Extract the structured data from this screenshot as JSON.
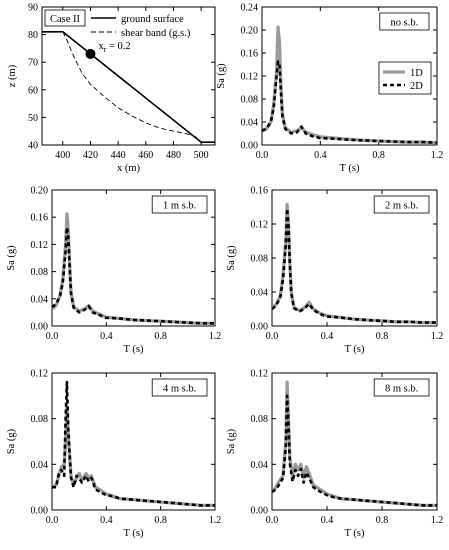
{
  "chart_data": [
    {
      "id": "geometry",
      "type": "line",
      "xlabel": "x (m)",
      "ylabel": "z (m)",
      "xlim": [
        385,
        510
      ],
      "ylim": [
        40,
        90
      ],
      "xticks": [
        400,
        420,
        440,
        460,
        480,
        500
      ],
      "yticks": [
        40,
        50,
        60,
        70,
        80,
        90
      ],
      "xtick_labels": [
        "400",
        "420",
        "440",
        "460",
        "480",
        "500"
      ],
      "ytick_labels": [
        "40",
        "50",
        "60",
        "70",
        "80",
        "90"
      ],
      "label_box": "Case II",
      "legend_position": "top-right",
      "series": [
        {
          "name": "ground surface",
          "style": "solid",
          "x": [
            385,
            400,
            500,
            510
          ],
          "y": [
            81,
            81,
            41,
            41
          ]
        },
        {
          "name": "shear band (g.s.)",
          "style": "dashed",
          "x": [
            400,
            403,
            408,
            414,
            420,
            430,
            440,
            450,
            460,
            468,
            475,
            483,
            490,
            496,
            500
          ],
          "y": [
            81,
            78,
            72,
            66,
            62,
            57.5,
            53.5,
            50.5,
            48,
            46.5,
            45.5,
            44.8,
            44,
            43,
            41
          ]
        }
      ],
      "marker": {
        "x": 420,
        "y": 73,
        "label": "x",
        "label_sub": "r",
        "label_value": " = 0.2"
      }
    },
    {
      "id": "no-sb",
      "type": "line",
      "label_box": "no s.b.",
      "xlabel": "T (s)",
      "ylabel": "Sa (g)",
      "xlim": [
        0,
        1.2
      ],
      "ylim": [
        0,
        0.24
      ],
      "xticks": [
        0,
        0.4,
        0.8,
        1.2
      ],
      "yticks": [
        0,
        0.04,
        0.08,
        0.12,
        0.16,
        0.2,
        0.24
      ],
      "xtick_labels": [
        "0.0",
        "0.4",
        "0.8",
        "1.2"
      ],
      "ytick_labels": [
        "0.00",
        "0.04",
        "0.08",
        "0.12",
        "0.16",
        "0.20",
        "0.24"
      ],
      "legend_position": "right",
      "series": [
        {
          "name": "1D",
          "style": "solid-gray",
          "x": [
            0,
            0.03,
            0.06,
            0.08,
            0.1,
            0.11,
            0.12,
            0.13,
            0.14,
            0.16,
            0.2,
            0.24,
            0.27,
            0.3,
            0.35,
            0.4,
            0.5,
            0.6,
            0.7,
            0.8,
            0.9,
            1.0,
            1.1,
            1.2
          ],
          "y": [
            0.025,
            0.028,
            0.04,
            0.07,
            0.13,
            0.205,
            0.18,
            0.1,
            0.055,
            0.03,
            0.022,
            0.025,
            0.03,
            0.022,
            0.018,
            0.014,
            0.012,
            0.01,
            0.008,
            0.007,
            0.006,
            0.005,
            0.005,
            0.004
          ]
        },
        {
          "name": "2D",
          "style": "dashed-black",
          "x": [
            0,
            0.03,
            0.06,
            0.08,
            0.1,
            0.11,
            0.12,
            0.13,
            0.14,
            0.16,
            0.2,
            0.24,
            0.27,
            0.3,
            0.35,
            0.4,
            0.5,
            0.6,
            0.7,
            0.8,
            0.9,
            1.0,
            1.1,
            1.2
          ],
          "y": [
            0.025,
            0.028,
            0.04,
            0.065,
            0.12,
            0.145,
            0.138,
            0.09,
            0.05,
            0.028,
            0.02,
            0.022,
            0.032,
            0.02,
            0.015,
            0.012,
            0.011,
            0.009,
            0.008,
            0.007,
            0.006,
            0.005,
            0.005,
            0.004
          ]
        }
      ]
    },
    {
      "id": "1m-sb",
      "type": "line",
      "label_box": "1 m s.b.",
      "xlabel": "T (s)",
      "ylabel": "Sa (g)",
      "xlim": [
        0,
        1.2
      ],
      "ylim": [
        0,
        0.2
      ],
      "xticks": [
        0,
        0.4,
        0.8,
        1.2
      ],
      "yticks": [
        0,
        0.04,
        0.08,
        0.12,
        0.16,
        0.2
      ],
      "xtick_labels": [
        "0.0",
        "0.4",
        "0.8",
        "1.2"
      ],
      "ytick_labels": [
        "0.00",
        "0.04",
        "0.08",
        "0.12",
        "0.16",
        "0.20"
      ],
      "series": [
        {
          "name": "1D",
          "style": "solid-gray",
          "x": [
            0,
            0.03,
            0.06,
            0.08,
            0.1,
            0.11,
            0.12,
            0.13,
            0.14,
            0.16,
            0.2,
            0.24,
            0.27,
            0.3,
            0.35,
            0.4,
            0.5,
            0.6,
            0.7,
            0.8,
            0.9,
            1.0,
            1.1,
            1.2
          ],
          "y": [
            0.025,
            0.03,
            0.045,
            0.07,
            0.12,
            0.165,
            0.14,
            0.09,
            0.05,
            0.028,
            0.022,
            0.025,
            0.03,
            0.022,
            0.017,
            0.013,
            0.011,
            0.009,
            0.008,
            0.007,
            0.006,
            0.005,
            0.004,
            0.004
          ]
        },
        {
          "name": "2D",
          "style": "dashed-black",
          "x": [
            0,
            0.03,
            0.06,
            0.08,
            0.1,
            0.11,
            0.12,
            0.13,
            0.14,
            0.16,
            0.2,
            0.24,
            0.27,
            0.3,
            0.35,
            0.4,
            0.5,
            0.6,
            0.7,
            0.8,
            0.9,
            1.0,
            1.1,
            1.2
          ],
          "y": [
            0.028,
            0.032,
            0.045,
            0.065,
            0.11,
            0.145,
            0.13,
            0.085,
            0.048,
            0.027,
            0.02,
            0.024,
            0.029,
            0.02,
            0.016,
            0.012,
            0.011,
            0.009,
            0.008,
            0.007,
            0.006,
            0.005,
            0.004,
            0.004
          ]
        }
      ]
    },
    {
      "id": "2m-sb",
      "type": "line",
      "label_box": "2 m s.b.",
      "xlabel": "T (s)",
      "ylabel": "Sa (g)",
      "xlim": [
        0,
        1.2
      ],
      "ylim": [
        0,
        0.16
      ],
      "xticks": [
        0,
        0.4,
        0.8,
        1.2
      ],
      "yticks": [
        0,
        0.04,
        0.08,
        0.12,
        0.16
      ],
      "xtick_labels": [
        "0.0",
        "0.4",
        "0.8",
        "1.2"
      ],
      "ytick_labels": [
        "0.00",
        "0.04",
        "0.08",
        "0.12",
        "0.16"
      ],
      "series": [
        {
          "name": "1D",
          "style": "solid-gray",
          "x": [
            0,
            0.03,
            0.06,
            0.08,
            0.1,
            0.11,
            0.12,
            0.13,
            0.14,
            0.16,
            0.2,
            0.24,
            0.27,
            0.3,
            0.35,
            0.4,
            0.5,
            0.6,
            0.7,
            0.8,
            0.9,
            1.0,
            1.1,
            1.2
          ],
          "y": [
            0.022,
            0.025,
            0.035,
            0.06,
            0.1,
            0.143,
            0.12,
            0.075,
            0.04,
            0.022,
            0.018,
            0.022,
            0.028,
            0.02,
            0.015,
            0.012,
            0.01,
            0.008,
            0.007,
            0.006,
            0.005,
            0.005,
            0.004,
            0.004
          ]
        },
        {
          "name": "2D",
          "style": "dashed-black",
          "x": [
            0,
            0.03,
            0.06,
            0.08,
            0.1,
            0.11,
            0.12,
            0.13,
            0.14,
            0.16,
            0.2,
            0.24,
            0.27,
            0.3,
            0.35,
            0.4,
            0.5,
            0.6,
            0.7,
            0.8,
            0.9,
            1.0,
            1.1,
            1.2
          ],
          "y": [
            0.02,
            0.024,
            0.034,
            0.055,
            0.095,
            0.138,
            0.118,
            0.07,
            0.038,
            0.021,
            0.017,
            0.021,
            0.026,
            0.019,
            0.014,
            0.011,
            0.01,
            0.008,
            0.007,
            0.006,
            0.005,
            0.005,
            0.004,
            0.004
          ]
        }
      ]
    },
    {
      "id": "4m-sb",
      "type": "line",
      "label_box": "4 m s.b.",
      "xlabel": "T (s)",
      "ylabel": "Sa (g)",
      "xlim": [
        0,
        1.2
      ],
      "ylim": [
        0,
        0.12
      ],
      "xticks": [
        0,
        0.4,
        0.8,
        1.2
      ],
      "yticks": [
        0,
        0.04,
        0.08,
        0.12
      ],
      "xtick_labels": [
        "0.0",
        "0.4",
        "0.8",
        "1.2"
      ],
      "ytick_labels": [
        "0.00",
        "0.04",
        "0.08",
        "0.12"
      ],
      "series": [
        {
          "name": "1D",
          "style": "solid-gray",
          "x": [
            0,
            0.03,
            0.05,
            0.07,
            0.09,
            0.1,
            0.11,
            0.12,
            0.14,
            0.16,
            0.18,
            0.2,
            0.22,
            0.25,
            0.27,
            0.29,
            0.32,
            0.35,
            0.4,
            0.45,
            0.5,
            0.6,
            0.7,
            0.8,
            0.9,
            1.0,
            1.1,
            1.2
          ],
          "y": [
            0.02,
            0.022,
            0.03,
            0.038,
            0.04,
            0.06,
            0.09,
            0.065,
            0.03,
            0.022,
            0.028,
            0.032,
            0.026,
            0.032,
            0.028,
            0.03,
            0.02,
            0.018,
            0.014,
            0.012,
            0.01,
            0.009,
            0.008,
            0.007,
            0.006,
            0.005,
            0.004,
            0.004
          ]
        },
        {
          "name": "2D",
          "style": "dashed-black",
          "x": [
            0,
            0.03,
            0.05,
            0.07,
            0.09,
            0.1,
            0.11,
            0.12,
            0.14,
            0.16,
            0.18,
            0.2,
            0.22,
            0.25,
            0.27,
            0.29,
            0.32,
            0.35,
            0.4,
            0.45,
            0.5,
            0.6,
            0.7,
            0.8,
            0.9,
            1.0,
            1.1,
            1.2
          ],
          "y": [
            0.02,
            0.02,
            0.032,
            0.035,
            0.03,
            0.08,
            0.112,
            0.07,
            0.028,
            0.02,
            0.03,
            0.028,
            0.024,
            0.03,
            0.025,
            0.028,
            0.018,
            0.016,
            0.013,
            0.012,
            0.01,
            0.009,
            0.008,
            0.007,
            0.006,
            0.005,
            0.004,
            0.004
          ]
        }
      ]
    },
    {
      "id": "8m-sb",
      "type": "line",
      "label_box": "8 m s.b.",
      "xlabel": "T (s)",
      "ylabel": "Sa (g)",
      "xlim": [
        0,
        1.2
      ],
      "ylim": [
        0,
        0.12
      ],
      "xticks": [
        0,
        0.4,
        0.8,
        1.2
      ],
      "yticks": [
        0,
        0.04,
        0.08,
        0.12
      ],
      "xtick_labels": [
        "0.0",
        "0.4",
        "0.8",
        "1.2"
      ],
      "ytick_labels": [
        "0.00",
        "0.04",
        "0.08",
        "0.12"
      ],
      "series": [
        {
          "name": "1D",
          "style": "solid-gray",
          "x": [
            0,
            0.03,
            0.05,
            0.08,
            0.1,
            0.11,
            0.12,
            0.13,
            0.15,
            0.17,
            0.19,
            0.21,
            0.23,
            0.25,
            0.27,
            0.3,
            0.35,
            0.4,
            0.45,
            0.5,
            0.6,
            0.7,
            0.8,
            0.9,
            1.0,
            1.1,
            1.2
          ],
          "y": [
            0.016,
            0.02,
            0.025,
            0.03,
            0.06,
            0.112,
            0.08,
            0.045,
            0.03,
            0.04,
            0.035,
            0.04,
            0.028,
            0.038,
            0.032,
            0.022,
            0.018,
            0.014,
            0.012,
            0.01,
            0.009,
            0.008,
            0.007,
            0.006,
            0.005,
            0.004,
            0.004
          ]
        },
        {
          "name": "2D",
          "style": "dashed-black",
          "x": [
            0,
            0.03,
            0.05,
            0.08,
            0.1,
            0.11,
            0.12,
            0.13,
            0.15,
            0.17,
            0.19,
            0.21,
            0.23,
            0.25,
            0.27,
            0.3,
            0.35,
            0.4,
            0.45,
            0.5,
            0.6,
            0.7,
            0.8,
            0.9,
            1.0,
            1.1,
            1.2
          ],
          "y": [
            0.016,
            0.018,
            0.022,
            0.028,
            0.055,
            0.1,
            0.075,
            0.04,
            0.025,
            0.035,
            0.03,
            0.036,
            0.024,
            0.033,
            0.028,
            0.02,
            0.016,
            0.013,
            0.011,
            0.01,
            0.009,
            0.008,
            0.007,
            0.006,
            0.005,
            0.004,
            0.004
          ]
        }
      ]
    }
  ]
}
